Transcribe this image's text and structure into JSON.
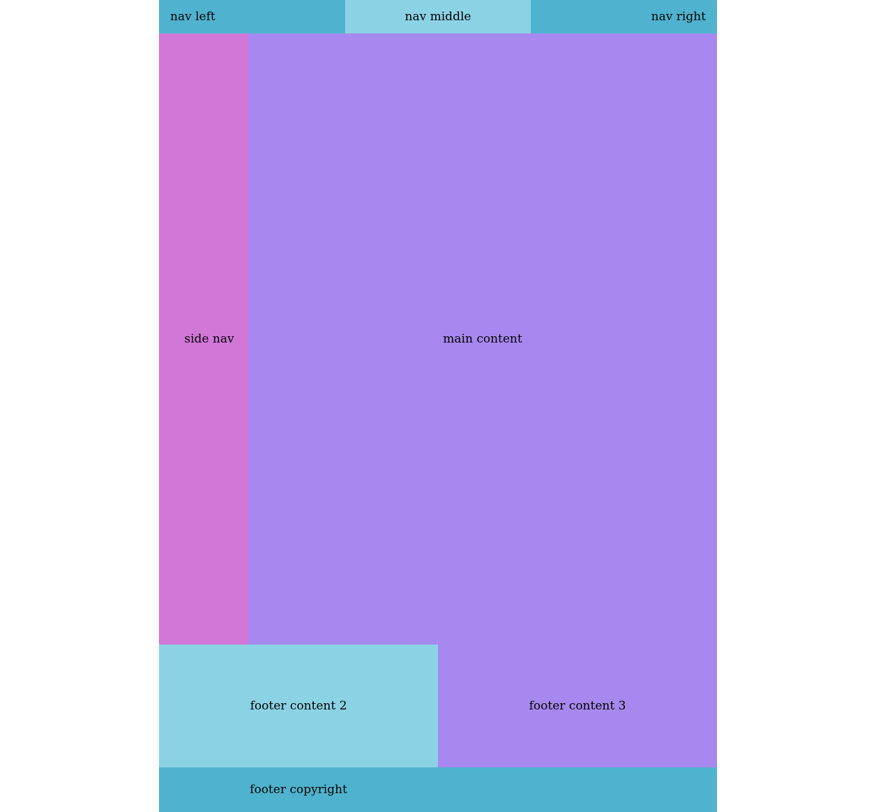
{
  "nav": {
    "left": "nav left",
    "middle": "nav middle",
    "right": "nav right"
  },
  "side_nav": "side nav",
  "main": "main content",
  "footer": {
    "content_2": "footer content 2",
    "content_3": "footer content 3",
    "copyright": "footer copyright"
  },
  "colors": {
    "nav_bg": "#4fb3cf",
    "light_bg": "#8bd2e4",
    "side_bg": "#d177d8",
    "main_bg": "#a788ee"
  }
}
